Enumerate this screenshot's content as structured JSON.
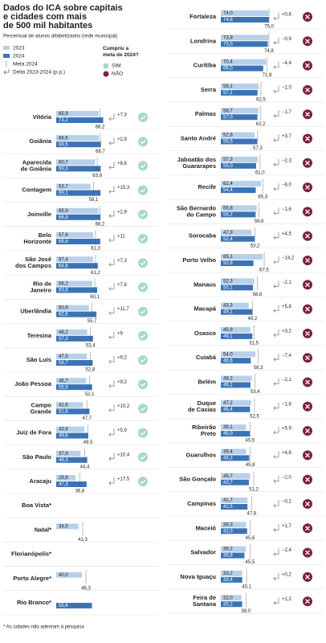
{
  "header": {
    "title": [
      "Dados do ICA sobre capitais",
      "e cidades com mais",
      "de 500 mil habitantes"
    ],
    "subtitle": "Percentual de alunos alfabetizados (rede municipal)",
    "legend": {
      "y2023": "2023",
      "y2024": "2024",
      "meta": "Meta 2024",
      "delta": "Delta 2023-2024 (p.p.)"
    },
    "question": [
      "Cumpriu a",
      "meta de 2024?"
    ],
    "yes": "SIM",
    "no": "NÃO"
  },
  "columns": [
    {
      "rows": [
        {
          "name": [
            "Vitória"
          ],
          "v2023": 65.9,
          "l2023": "65,9",
          "v2024": 73.2,
          "l2024": "73,2",
          "meta": 68.2,
          "lmeta": "68,2",
          "delta": 7.3,
          "ldelta": "+7,3",
          "met": true
        },
        {
          "name": [
            "Goiânia"
          ],
          "v2023": 66.6,
          "l2023": "66,6",
          "v2024": 69.5,
          "l2024": "69,5",
          "meta": 68.7,
          "lmeta": "68,7",
          "delta": 2.9,
          "ldelta": "+2,9",
          "met": true
        },
        {
          "name": [
            "Aparecida",
            "de Goiânia"
          ],
          "v2023": 60.7,
          "l2023": "60,7",
          "v2024": 69.3,
          "l2024": "69,3",
          "meta": 63.9,
          "lmeta": "63,9",
          "delta": 8.6,
          "ldelta": "+8,6",
          "met": true
        },
        {
          "name": [
            "Contagem"
          ],
          "v2023": 53.7,
          "l2023": "53,7",
          "v2024": 69.1,
          "l2024": "69,1",
          "meta": 58.1,
          "lmeta": "58,1",
          "delta": 15.3,
          "ldelta": "+15,3",
          "met": true
        },
        {
          "name": [
            "Joinville"
          ],
          "v2023": 65.9,
          "l2023": "65,9",
          "v2024": 68.8,
          "l2024": "68,8",
          "meta": 68.2,
          "lmeta": "68,2",
          "delta": 2.9,
          "ldelta": "+2,9",
          "met": true
        },
        {
          "name": [
            "Belo",
            "Horizonte"
          ],
          "v2023": 57.6,
          "l2023": "57,6",
          "v2024": 68.6,
          "l2024": "68,6",
          "meta": 61.3,
          "lmeta": "61,3",
          "delta": 11,
          "ldelta": "+11",
          "met": true
        },
        {
          "name": [
            "São José",
            "dos Campos"
          ],
          "v2023": 57.4,
          "l2023": "57,4",
          "v2024": 64.8,
          "l2024": "64,8",
          "meta": 61.2,
          "lmeta": "61,2",
          "delta": 7.3,
          "ldelta": "+7,3",
          "met": true
        },
        {
          "name": [
            "Rio de",
            "Janeiro"
          ],
          "v2023": 56.2,
          "l2023": "56,2",
          "v2024": 63.8,
          "l2024": "63,8",
          "meta": 60.1,
          "lmeta": "60,1",
          "delta": 7.6,
          "ldelta": "+7,6",
          "met": true
        },
        {
          "name": [
            "Uberlândia"
          ],
          "v2023": 50.9,
          "l2023": "50,9",
          "v2024": 62.6,
          "l2024": "62,6",
          "meta": 55.7,
          "lmeta": "55,7",
          "delta": 11.7,
          "ldelta": "+11,7",
          "met": true
        },
        {
          "name": [
            "Teresina"
          ],
          "v2023": 48.2,
          "l2023": "48,2",
          "v2024": 57.3,
          "l2024": "57,3",
          "meta": 53.4,
          "lmeta": "53,4",
          "delta": 9,
          "ldelta": "+9",
          "met": true
        },
        {
          "name": [
            "São Luís"
          ],
          "v2023": 47.5,
          "l2023": "47,5",
          "v2024": 56.7,
          "l2024": "56,7",
          "meta": 52.8,
          "lmeta": "52,8",
          "delta": 9.2,
          "ldelta": "+9,2",
          "met": true
        },
        {
          "name": [
            "João Pessoa"
          ],
          "v2023": 46.7,
          "l2023": "46,7",
          "v2024": 55.9,
          "l2024": "55,9",
          "meta": 52.1,
          "lmeta": "52,1",
          "delta": 9.2,
          "ldelta": "+9,2",
          "met": true
        },
        {
          "name": [
            "Campo",
            "Grande"
          ],
          "v2023": 41.6,
          "l2023": "41,6",
          "v2024": 51.8,
          "l2024": "51,8",
          "meta": 47.7,
          "lmeta": "47,7",
          "delta": 10.2,
          "ldelta": "+10,2",
          "met": true
        },
        {
          "name": [
            "Juiz de Fora"
          ],
          "v2023": 43.8,
          "l2023": "43,8",
          "v2024": 49.6,
          "l2024": "49,6",
          "meta": 49.5,
          "lmeta": "49,5",
          "delta": 5.9,
          "ldelta": "+5,9",
          "met": true
        },
        {
          "name": [
            "São Paulo"
          ],
          "v2023": 37.9,
          "l2023": "37,9",
          "v2024": 48.3,
          "l2024": "48,3",
          "meta": 44.4,
          "lmeta": "44,4",
          "delta": 10.4,
          "ldelta": "+10,4",
          "met": true
        },
        {
          "name": [
            "Aracaju"
          ],
          "v2023": 29.8,
          "l2023": "29,8",
          "v2024": 47.3,
          "l2024": "47,3",
          "meta": 36.8,
          "lmeta": "36,8",
          "delta": 17.5,
          "ldelta": "+17,5",
          "met": true
        },
        {
          "name": [
            "Boa Vista*"
          ]
        },
        {
          "name": [
            "Natal*"
          ],
          "v2023": 34.5,
          "l2023": "34,5",
          "meta": 41.3,
          "lmeta": "41,3"
        },
        {
          "name": [
            "Florianópolis*"
          ]
        },
        {
          "name": [
            "Porto Alegre*"
          ],
          "v2023": 40.0,
          "l2023": "40,0",
          "meta": 46.3,
          "lmeta": "46,3"
        },
        {
          "name": [
            "Rio Branco*"
          ],
          "v2024": 55.6,
          "l2024": "55,6"
        }
      ]
    },
    {
      "rows": [
        {
          "name": [
            "Fortaleza"
          ],
          "v2023": 74.0,
          "l2023": "74,0",
          "v2024": 74.8,
          "l2024": "74,8",
          "meta": 75.0,
          "lmeta": "75,0",
          "delta": 0.8,
          "ldelta": "+0,8",
          "met": false
        },
        {
          "name": [
            "Londrina"
          ],
          "v2023": 73.9,
          "l2023": "73,9",
          "v2024": 73.0,
          "l2024": "73,0",
          "meta": 74.8,
          "lmeta": "74,8",
          "delta": -0.9,
          "ldelta": "−0,9",
          "met": false
        },
        {
          "name": [
            "Curitiba"
          ],
          "v2023": 70.4,
          "l2023": "70,4",
          "v2024": 66.0,
          "l2024": "66,0",
          "meta": 71.9,
          "lmeta": "71,9",
          "delta": -4.4,
          "ldelta": "−4,4",
          "met": false
        },
        {
          "name": [
            "Serra"
          ],
          "v2023": 59.1,
          "l2023": "59,1",
          "v2024": 57.1,
          "l2024": "57,1",
          "meta": 62.5,
          "lmeta": "62,5",
          "delta": -2.0,
          "ldelta": "−2,0",
          "met": false
        },
        {
          "name": [
            "Palmas"
          ],
          "v2023": 58.7,
          "l2023": "58,7",
          "v2024": 57.0,
          "l2024": "57,0",
          "meta": 62.2,
          "lmeta": "62,2",
          "delta": -1.7,
          "ldelta": "−1,7",
          "met": false
        },
        {
          "name": [
            "Santo André"
          ],
          "v2023": 52.8,
          "l2023": "52,8",
          "v2024": 56.5,
          "l2024": "56,5",
          "meta": 57.3,
          "lmeta": "57,3",
          "delta": 3.7,
          "ldelta": "+3,7",
          "met": false
        },
        {
          "name": [
            "Jaboatão dos",
            "Guararapes"
          ],
          "v2023": 57.3,
          "l2023": "57,3",
          "v2024": 55.0,
          "l2024": "55,0",
          "meta": 61.0,
          "lmeta": "61,0",
          "delta": -2.3,
          "ldelta": "−2,3",
          "met": false
        },
        {
          "name": [
            "Recife"
          ],
          "v2023": 62.4,
          "l2023": "62,4",
          "v2024": 54.4,
          "l2024": "54,4",
          "meta": 65.3,
          "lmeta": "65,3",
          "delta": -8.0,
          "ldelta": "−8,0",
          "met": false
        },
        {
          "name": [
            "São Bernardo",
            "do Campo"
          ],
          "v2023": 55.8,
          "l2023": "55,8",
          "v2024": 54.2,
          "l2024": "54,2",
          "meta": 59.6,
          "lmeta": "59,6",
          "delta": -1.6,
          "ldelta": "−1,6",
          "met": false
        },
        {
          "name": [
            "Sorocaba"
          ],
          "v2023": 47.9,
          "l2023": "47,9",
          "v2024": 52.4,
          "l2024": "52,4",
          "meta": 53.2,
          "lmeta": "53,2",
          "delta": 4.5,
          "ldelta": "+4,5",
          "met": false
        },
        {
          "name": [
            "Porto Velho"
          ],
          "v2023": 65.1,
          "l2023": "65,1",
          "v2024": 50.8,
          "l2024": "50,8",
          "meta": 67.5,
          "lmeta": "67,5",
          "delta": -14.2,
          "ldelta": "−14,2",
          "met": false
        },
        {
          "name": [
            "Manaus"
          ],
          "v2023": 52.3,
          "l2023": "52,3",
          "v2024": 50.1,
          "l2024": "50,1",
          "meta": 56.8,
          "lmeta": "56,8",
          "delta": -2.1,
          "ldelta": "−2,1",
          "met": false
        },
        {
          "name": [
            "Macapá"
          ],
          "v2023": 43.3,
          "l2023": "43,3",
          "v2024": 49.1,
          "l2024": "49,1",
          "meta": 49.2,
          "lmeta": "49,2",
          "delta": 5.8,
          "ldelta": "+5,8",
          "met": false
        },
        {
          "name": [
            "Osasco"
          ],
          "v2023": 45.9,
          "l2023": "45,9",
          "v2024": 49.1,
          "l2024": "49,1",
          "meta": 51.5,
          "lmeta": "51,5",
          "delta": 3.2,
          "ldelta": "+3,2",
          "met": false
        },
        {
          "name": [
            "Cuiabá"
          ],
          "v2023": 54.0,
          "l2023": "54,0",
          "v2024": 46.6,
          "l2024": "46,6",
          "meta": 58.3,
          "lmeta": "58,3",
          "delta": -7.4,
          "ldelta": "−7,4",
          "met": false
        },
        {
          "name": [
            "Belém"
          ],
          "v2023": 48.2,
          "l2023": "48,2",
          "v2024": 46.1,
          "l2024": "46,1",
          "meta": 53.4,
          "lmeta": "53,4",
          "delta": -2.1,
          "ldelta": "−2,1",
          "met": false
        },
        {
          "name": [
            "Duque",
            "de Caxias"
          ],
          "v2023": 47.2,
          "l2023": "47,2",
          "v2024": 45.4,
          "l2024": "45,4",
          "meta": 52.5,
          "lmeta": "52,5",
          "delta": -1.8,
          "ldelta": "−1,8",
          "met": false
        },
        {
          "name": [
            "Ribeirão",
            "Preto"
          ],
          "v2023": 39.1,
          "l2023": "39,1",
          "v2024": 45.0,
          "l2024": "45,0",
          "meta": 45.5,
          "lmeta": "45,5",
          "delta": 5.9,
          "ldelta": "+5,9",
          "met": false
        },
        {
          "name": [
            "Guarulhos"
          ],
          "v2023": 39.4,
          "l2023": "39,4",
          "v2024": 44.2,
          "l2024": "44,2",
          "meta": 45.8,
          "lmeta": "45,8",
          "delta": 4.8,
          "ldelta": "+4,8",
          "met": false
        },
        {
          "name": [
            "São Gonçalo"
          ],
          "v2023": 45.7,
          "l2023": "45,7",
          "v2024": 43.7,
          "l2024": "43,7",
          "meta": 51.2,
          "lmeta": "51,2",
          "delta": -2.0,
          "ldelta": "−2,0",
          "met": false
        },
        {
          "name": [
            "Campinas"
          ],
          "v2023": 41.7,
          "l2023": "41,7",
          "v2024": 41.5,
          "l2024": "41,5",
          "meta": 47.8,
          "lmeta": "47,8",
          "delta": -0.2,
          "ldelta": "−0,2",
          "met": false
        },
        {
          "name": [
            "Maceió"
          ],
          "v2023": 39.3,
          "l2023": "39,3",
          "v2024": 41.0,
          "l2024": "41,0",
          "meta": 45.6,
          "lmeta": "45,6",
          "delta": 1.7,
          "ldelta": "+1,7",
          "met": false
        },
        {
          "name": [
            "Salvador"
          ],
          "v2023": 39.2,
          "l2023": "39,2",
          "v2024": 36.8,
          "l2024": "36,8",
          "meta": 45.5,
          "lmeta": "45,5",
          "delta": -2.4,
          "ldelta": "−2,4",
          "met": false
        },
        {
          "name": [
            "Nova Iguaçu"
          ],
          "v2023": 33.2,
          "l2023": "33,2",
          "v2024": 33.4,
          "l2024": "33,4",
          "meta": 40.1,
          "lmeta": "40,1",
          "delta": 0.2,
          "ldelta": "+0,2",
          "met": false
        },
        {
          "name": [
            "Feira de",
            "Santana"
          ],
          "v2023": 32.0,
          "l2023": "32,0",
          "v2024": 33.2,
          "l2024": "33,2",
          "meta": 39.0,
          "lmeta": "39,0",
          "delta": 1.2,
          "ldelta": "+1,2",
          "met": false
        }
      ]
    }
  ],
  "footnote": "* As cidades não aderiram à pesquisa"
}
